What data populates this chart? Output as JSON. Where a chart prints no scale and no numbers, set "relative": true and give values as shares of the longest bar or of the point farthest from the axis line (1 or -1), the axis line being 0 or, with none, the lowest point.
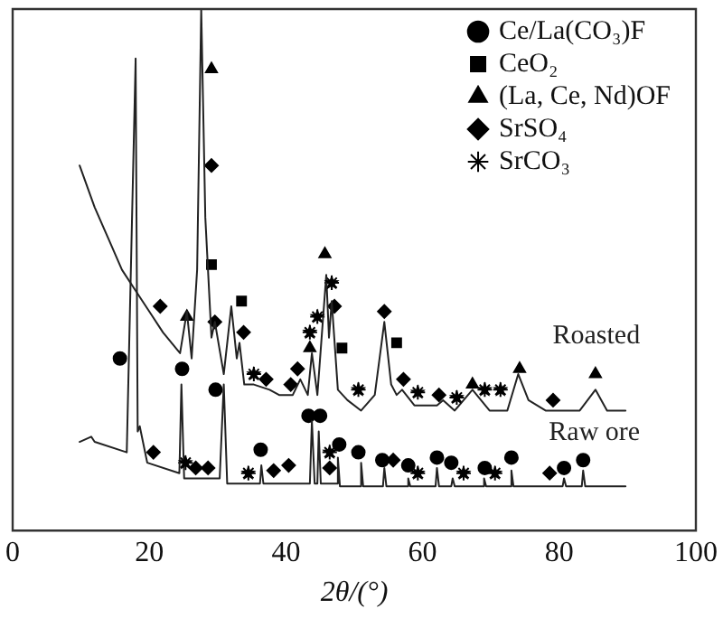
{
  "chart_data": {
    "type": "line",
    "xlabel": "2θ/(°)",
    "xlim": [
      0,
      100
    ],
    "xticks": [
      0,
      20,
      40,
      60,
      80,
      100
    ],
    "relative": true,
    "tick_labels": "x",
    "legend": "top right",
    "annotations": [
      "Roasted",
      "Raw ore"
    ],
    "series": [
      {
        "marker": "none",
        "color": "#222222",
        "x": [
          9.8,
          12,
          14,
          16,
          18,
          20,
          22,
          24.5,
          25.5,
          26.2,
          27,
          27.6,
          28.2,
          29.1,
          29.6,
          30.9,
          32,
          32.8,
          33.2,
          33.9,
          35.3,
          37.6,
          39,
          41,
          42.1,
          43.2,
          43.8,
          44.6,
          45.9,
          46.3,
          46.7,
          47.6,
          49,
          51,
          53,
          54.4,
          55.4,
          56.2,
          57,
          58.8,
          60,
          62.1,
          63,
          64.7,
          67.3,
          69.8,
          72.4,
          74,
          75.5,
          78,
          80.2,
          83,
          85.3,
          87,
          89.7
        ],
        "values": [
          0.7,
          0.62,
          0.56,
          0.5,
          0.46,
          0.42,
          0.38,
          0.34,
          0.42,
          0.33,
          0.5,
          1,
          0.6,
          0.37,
          0.4,
          0.3,
          0.43,
          0.33,
          0.36,
          0.28,
          0.28,
          0.27,
          0.26,
          0.26,
          0.29,
          0.26,
          0.34,
          0.26,
          0.49,
          0.37,
          0.44,
          0.27,
          0.25,
          0.23,
          0.26,
          0.4,
          0.28,
          0.26,
          0.27,
          0.24,
          0.24,
          0.24,
          0.25,
          0.23,
          0.27,
          0.23,
          0.23,
          0.3,
          0.25,
          0.23,
          0.23,
          0.23,
          0.27,
          0.23,
          0.23
        ]
      },
      {
        "marker": "none",
        "color": "#222222",
        "x": [
          9.8,
          11.5,
          12,
          16.7,
          18,
          18.3,
          18.6,
          19.7,
          24.4,
          24.7,
          25.1,
          30.3,
          30.9,
          31.4,
          36.2,
          36.4,
          36.7,
          43.5,
          43.8,
          44.2,
          44.6,
          44.8,
          45.1,
          47.4,
          47.6,
          47.9,
          50.8,
          51,
          51.3,
          54.2,
          54.4,
          54.7,
          57.7,
          57.9,
          58.2,
          61.9,
          62.1,
          62.4,
          64.2,
          64.4,
          64.7,
          68.8,
          69,
          69.3,
          72.8,
          73,
          73.3,
          80.5,
          80.7,
          81,
          83.3,
          83.5,
          83.8,
          89.7
        ],
        "values": [
          0.17,
          0.18,
          0.17,
          0.15,
          0.905,
          0.19,
          0.2,
          0.13,
          0.11,
          0.28,
          0.1,
          0.1,
          0.28,
          0.09,
          0.09,
          0.125,
          0.09,
          0.09,
          0.21,
          0.09,
          0.09,
          0.19,
          0.09,
          0.09,
          0.14,
          0.085,
          0.085,
          0.13,
          0.085,
          0.085,
          0.12,
          0.085,
          0.085,
          0.1,
          0.085,
          0.085,
          0.12,
          0.085,
          0.085,
          0.1,
          0.085,
          0.085,
          0.1,
          0.085,
          0.085,
          0.115,
          0.085,
          0.085,
          0.1,
          0.085,
          0.085,
          0.115,
          0.085,
          0.085
        ]
      },
      {
        "name": "Ce/La(CO₃)F",
        "type": "scatter",
        "marker": "circle",
        "color": "#000000",
        "x": [
          15.7,
          24.8,
          29.7,
          36.3,
          43.3,
          45,
          47.8,
          50.6,
          54.1,
          57.9,
          62.1,
          64.2,
          69.1,
          73,
          80.7,
          83.5
        ],
        "values": [
          0.33,
          0.31,
          0.27,
          0.155,
          0.22,
          0.22,
          0.165,
          0.15,
          0.135,
          0.125,
          0.14,
          0.13,
          0.12,
          0.14,
          0.12,
          0.135
        ]
      },
      {
        "name": "CeO₂",
        "type": "scatter",
        "marker": "square",
        "color": "#000000",
        "x": [
          29.1,
          33.5,
          48.2,
          56.2
        ],
        "values": [
          0.51,
          0.44,
          0.35,
          0.36
        ]
      },
      {
        "name": "(La, Ce, Nd)OF",
        "type": "scatter",
        "marker": "triangle",
        "color": "#000000",
        "x": [
          29.1,
          25.5,
          45.7,
          43.5,
          67.3,
          74.2,
          85.3
        ],
        "values": [
          0.885,
          0.41,
          0.53,
          0.35,
          0.28,
          0.31,
          0.3
        ]
      },
      {
        "name": "SrSO₄",
        "type": "scatter",
        "marker": "diamond",
        "color": "#000000",
        "x": [
          29.1,
          21.6,
          29.6,
          33.8,
          37.1,
          40.7,
          41.7,
          47.1,
          54.4,
          57.2,
          62.4,
          79.1,
          20.6,
          26.8,
          28.6,
          38.2,
          40.4,
          46.4,
          55.7,
          78.6
        ],
        "values": [
          0.7,
          0.43,
          0.4,
          0.38,
          0.29,
          0.28,
          0.31,
          0.43,
          0.42,
          0.29,
          0.26,
          0.25,
          0.15,
          0.12,
          0.12,
          0.115,
          0.125,
          0.12,
          0.135,
          0.11
        ]
      },
      {
        "name": "SrCO₃",
        "type": "scatter",
        "marker": "star",
        "color": "#000000",
        "x": [
          35.3,
          43.5,
          44.6,
          46.7,
          50.6,
          59.3,
          65,
          69.1,
          71.4,
          25.3,
          34.5,
          46.4,
          59.3,
          66,
          70.6
        ],
        "values": [
          0.3,
          0.38,
          0.41,
          0.475,
          0.27,
          0.265,
          0.255,
          0.27,
          0.27,
          0.13,
          0.11,
          0.15,
          0.11,
          0.11,
          0.11
        ]
      }
    ]
  }
}
